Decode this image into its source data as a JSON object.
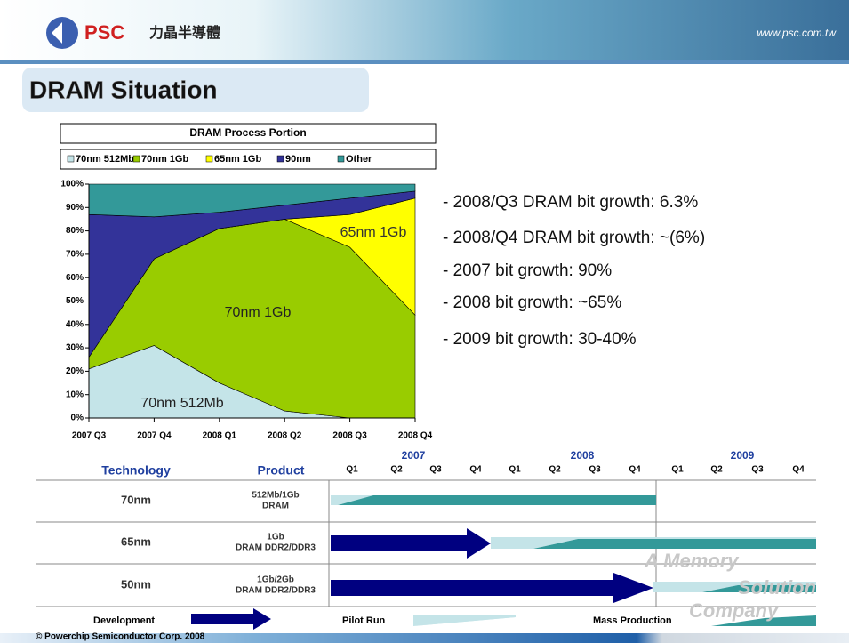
{
  "header": {
    "logo": "PSC",
    "company": "力晶半導體",
    "url": "www.psc.com.tw"
  },
  "title": "DRAM Situation",
  "chart_data": {
    "type": "area",
    "stacked": true,
    "title": "DRAM Process Portion",
    "categories": [
      "2007 Q3",
      "2007 Q4",
      "2008 Q1",
      "2008 Q2",
      "2008 Q3",
      "2008 Q4"
    ],
    "series": [
      {
        "name": "70nm 512Mb",
        "color": "#c4e4e8",
        "values": [
          21,
          31,
          15,
          3,
          0,
          0
        ]
      },
      {
        "name": "70nm 1Gb",
        "color": "#99cc00",
        "values": [
          5,
          37,
          66,
          82,
          73,
          44
        ]
      },
      {
        "name": "65nm 1Gb",
        "color": "#ffff00",
        "values": [
          0,
          0,
          0,
          0,
          14,
          50
        ]
      },
      {
        "name": "90nm",
        "color": "#333399",
        "values": [
          61,
          18,
          7,
          6,
          7,
          3
        ]
      },
      {
        "name": "Other",
        "color": "#339999",
        "values": [
          13,
          14,
          12,
          9,
          6,
          3
        ]
      }
    ],
    "ylim": [
      0,
      100
    ],
    "yticks": [
      {
        "value": 0,
        "label": "0%"
      },
      {
        "value": 10,
        "label": "10%"
      },
      {
        "value": 20,
        "label": "20%"
      },
      {
        "value": 30,
        "label": "30%"
      },
      {
        "value": 40,
        "label": "40%"
      },
      {
        "value": 50,
        "label": "50%"
      },
      {
        "value": 60,
        "label": "60%"
      },
      {
        "value": 70,
        "label": "70%"
      },
      {
        "value": 80,
        "label": "80%"
      },
      {
        "value": 90,
        "label": "90%"
      },
      {
        "value": 100,
        "label": "100%"
      }
    ],
    "legend": "top",
    "annotations": [
      "65nm 1Gb",
      "70nm 1Gb",
      "70nm 512Mb"
    ]
  },
  "bullets": [
    "- 2008/Q3 DRAM bit growth: 6.3%",
    "- 2008/Q4 DRAM bit growth: ~(6%)",
    "- 2007 bit growth: 90%",
    "- 2008 bit growth: ~65%",
    "- 2009 bit growth: 30-40%"
  ],
  "roadmap": {
    "headers": [
      "Technology",
      "Product"
    ],
    "years": [
      "2007",
      "2008",
      "2009"
    ],
    "quarters": [
      "Q1",
      "Q2",
      "Q3",
      "Q4",
      "Q1",
      "Q2",
      "Q3",
      "Q4",
      "Q1",
      "Q2",
      "Q3",
      "Q4"
    ],
    "rows": [
      {
        "technology": "70nm",
        "product": [
          "512Mb/1Gb",
          "DRAM"
        ]
      },
      {
        "technology": "65nm",
        "product": [
          "1Gb",
          "DRAM DDR2/DDR3"
        ]
      },
      {
        "technology": "50nm",
        "product": [
          "1Gb/2Gb",
          "DRAM DDR2/DDR3"
        ]
      }
    ],
    "legend": [
      "Development",
      "Pilot Run",
      "Mass Production"
    ]
  },
  "watermark": [
    "A Memory",
    "Solution",
    "Company"
  ],
  "footer": "© Powerchip Semiconductor Corp. 2008"
}
